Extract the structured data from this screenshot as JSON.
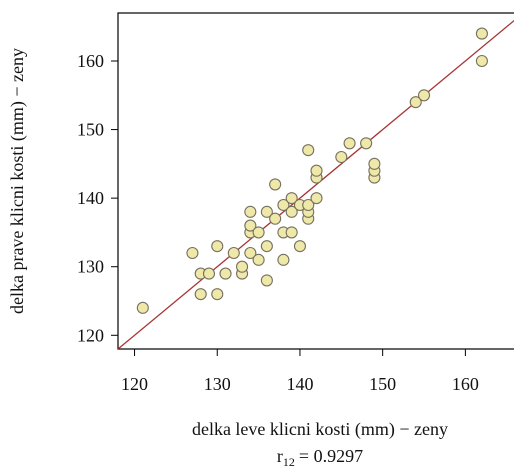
{
  "chart_data": {
    "type": "scatter",
    "title": "",
    "xlabel": "delka leve klicni kosti (mm) − zeny",
    "ylabel": "delka prave klicni kosti (mm) − zeny",
    "xlim": [
      118,
      166
    ],
    "ylim": [
      118,
      167
    ],
    "xticks": [
      120,
      130,
      140,
      150,
      160
    ],
    "yticks": [
      120,
      130,
      140,
      150,
      160
    ],
    "grid": false,
    "colors": {
      "point_fill": "#efe9a9",
      "point_stroke": "#777060",
      "fit_line": "#a83232"
    },
    "correlation": {
      "symbol": "r",
      "subscript": "12",
      "value_text": "= 0.9297"
    },
    "fit_line": {
      "x": [
        118,
        166
      ],
      "y": [
        118,
        166
      ]
    },
    "points": [
      [
        121,
        124
      ],
      [
        127,
        132
      ],
      [
        128,
        129
      ],
      [
        128,
        126
      ],
      [
        129,
        129
      ],
      [
        130,
        126
      ],
      [
        130,
        133
      ],
      [
        131,
        129
      ],
      [
        132,
        132
      ],
      [
        133,
        129
      ],
      [
        133,
        130
      ],
      [
        134,
        132
      ],
      [
        134,
        135
      ],
      [
        134,
        136
      ],
      [
        134,
        138
      ],
      [
        135,
        131
      ],
      [
        135,
        135
      ],
      [
        136,
        128
      ],
      [
        136,
        133
      ],
      [
        136,
        138
      ],
      [
        137,
        137
      ],
      [
        137,
        142
      ],
      [
        138,
        131
      ],
      [
        138,
        135
      ],
      [
        138,
        139
      ],
      [
        139,
        135
      ],
      [
        139,
        138
      ],
      [
        139,
        140
      ],
      [
        140,
        133
      ],
      [
        140,
        139
      ],
      [
        141,
        137
      ],
      [
        141,
        138
      ],
      [
        141,
        139
      ],
      [
        141,
        147
      ],
      [
        142,
        140
      ],
      [
        142,
        143
      ],
      [
        142,
        144
      ],
      [
        145,
        146
      ],
      [
        146,
        148
      ],
      [
        148,
        148
      ],
      [
        149,
        143
      ],
      [
        149,
        144
      ],
      [
        149,
        145
      ],
      [
        154,
        154
      ],
      [
        155,
        155
      ],
      [
        162,
        160
      ],
      [
        162,
        164
      ]
    ]
  }
}
